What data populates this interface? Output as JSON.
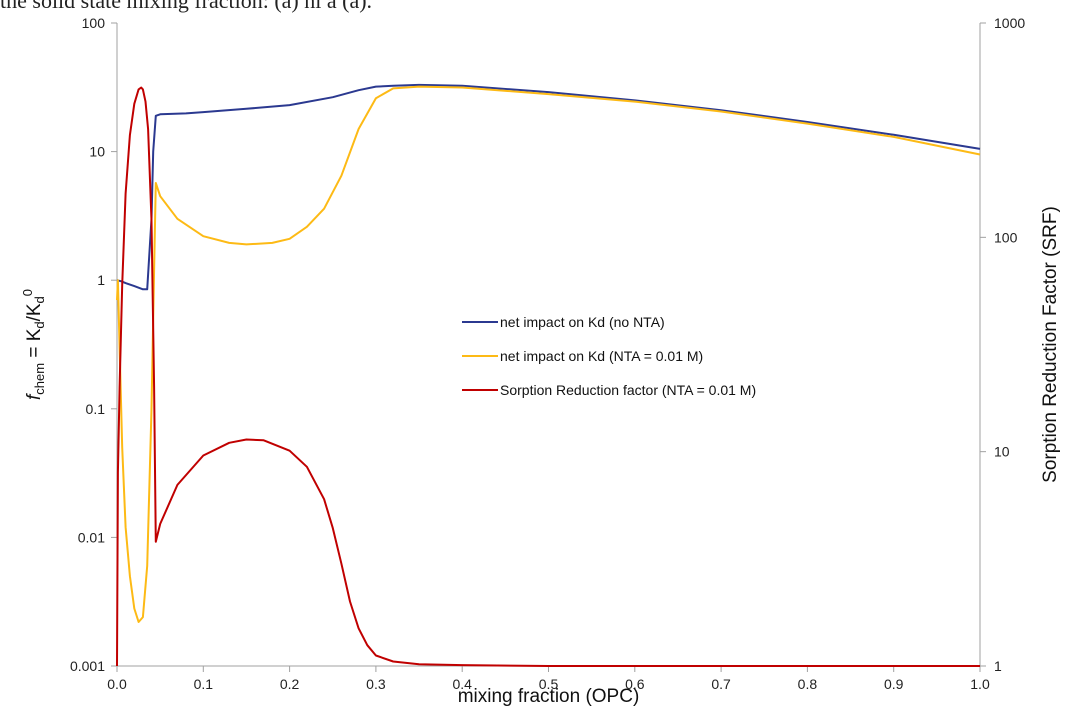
{
  "caption": "the solid state mixing fraction: (a) hi a (a).",
  "chart_data": {
    "type": "line",
    "xlabel": "mixing fraction (OPC)",
    "ylabel": "f_chem = K_d/K_d^0",
    "ylabel_parts": {
      "f": "f",
      "chem": "chem",
      "eq": " = K",
      "d1": "d",
      "slash": "/K",
      "d2": "d",
      "zero": "0"
    },
    "y2label": "Sorption Reduction Factor (SRF)",
    "xlim": [
      0.0,
      1.0
    ],
    "ylim": [
      0.001,
      100
    ],
    "y2lim": [
      1,
      1000
    ],
    "yscale": "log",
    "y2scale": "log",
    "grid": false,
    "legend_position": "center",
    "x_ticks": [
      "0.0",
      "0.1",
      "0.2",
      "0.3",
      "0.4",
      "0.5",
      "0.6",
      "0.7",
      "0.8",
      "0.9",
      "1.0"
    ],
    "y_ticks": [
      "0.001",
      "0.01",
      "0.1",
      "1",
      "10",
      "100"
    ],
    "y2_ticks": [
      "1",
      "10",
      "100",
      "1000"
    ],
    "colors": {
      "no_nta": "#2b3990",
      "nta": "#fdba15",
      "srf": "#c00000"
    },
    "series": [
      {
        "name": "net impact on Kd (no NTA)",
        "axis": "left",
        "color": "#2b3990",
        "x": [
          0.0,
          0.005,
          0.01,
          0.02,
          0.03,
          0.035,
          0.04,
          0.042,
          0.045,
          0.05,
          0.08,
          0.1,
          0.15,
          0.2,
          0.25,
          0.28,
          0.3,
          0.32,
          0.35,
          0.4,
          0.5,
          0.6,
          0.7,
          0.8,
          0.9,
          1.0
        ],
        "y": [
          1.0,
          0.98,
          0.95,
          0.9,
          0.85,
          0.85,
          3.0,
          10.0,
          19.0,
          19.5,
          19.8,
          20.3,
          21.5,
          23.0,
          26.5,
          30.0,
          32.0,
          32.5,
          33.0,
          32.5,
          29.0,
          25.0,
          21.0,
          17.0,
          13.5,
          10.5
        ]
      },
      {
        "name": "net impact on Kd (NTA = 0.01 M)",
        "axis": "left",
        "color": "#fdba15",
        "x": [
          0.0,
          0.001,
          0.003,
          0.006,
          0.01,
          0.015,
          0.02,
          0.025,
          0.03,
          0.035,
          0.04,
          0.043,
          0.045,
          0.05,
          0.07,
          0.1,
          0.13,
          0.15,
          0.18,
          0.2,
          0.22,
          0.24,
          0.26,
          0.28,
          0.3,
          0.32,
          0.35,
          0.4,
          0.5,
          0.6,
          0.7,
          0.8,
          0.9,
          1.0
        ],
        "y": [
          0.7,
          1.0,
          0.3,
          0.05,
          0.012,
          0.005,
          0.0028,
          0.0022,
          0.0024,
          0.006,
          0.1,
          1.2,
          5.7,
          4.5,
          3.0,
          2.2,
          1.95,
          1.9,
          1.95,
          2.1,
          2.6,
          3.6,
          6.5,
          15.0,
          26.0,
          31.0,
          32.0,
          31.5,
          28.0,
          24.5,
          20.5,
          16.5,
          13.0,
          9.5
        ]
      },
      {
        "name": "Sorption Reduction factor (NTA = 0.01 M)",
        "axis": "right",
        "color": "#c00000",
        "x": [
          0.0,
          0.001,
          0.003,
          0.006,
          0.01,
          0.015,
          0.02,
          0.025,
          0.028,
          0.03,
          0.033,
          0.036,
          0.04,
          0.043,
          0.045,
          0.05,
          0.07,
          0.1,
          0.13,
          0.15,
          0.17,
          0.2,
          0.22,
          0.24,
          0.25,
          0.26,
          0.27,
          0.28,
          0.29,
          0.3,
          0.32,
          0.35,
          0.4,
          0.5,
          0.6,
          0.7,
          0.8,
          0.9,
          1.0
        ],
        "y": [
          1.0,
          8.0,
          20.0,
          60.0,
          160.0,
          300.0,
          420.0,
          490.0,
          500.0,
          490.0,
          430.0,
          320.0,
          120.0,
          20.0,
          3.8,
          4.6,
          7.0,
          9.6,
          11.0,
          11.4,
          11.3,
          10.1,
          8.5,
          6.0,
          4.4,
          3.0,
          2.0,
          1.5,
          1.25,
          1.12,
          1.05,
          1.02,
          1.01,
          1.0,
          1.0,
          1.0,
          1.0,
          1.0,
          1.0
        ]
      }
    ]
  }
}
